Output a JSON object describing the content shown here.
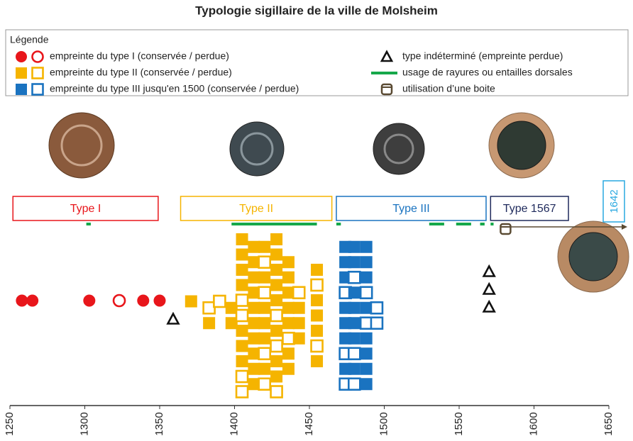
{
  "chart_data": {
    "type": "timeline",
    "title": "Typologie sigillaire de la ville de Molsheim",
    "legend_title": "Légende",
    "xlim": [
      1250,
      1650
    ],
    "xticks": [
      1250,
      1300,
      1350,
      1400,
      1450,
      1500,
      1550,
      1600,
      1650
    ],
    "series": [
      {
        "name": "empreinte du type I (conservée / perdue)",
        "color": "#e8161b",
        "marker": "circle",
        "columns": [
          {
            "x": 1258,
            "conserved": [
              true
            ]
          },
          {
            "x": 1265,
            "conserved": [
              true
            ]
          },
          {
            "x": 1303,
            "conserved": [
              true
            ]
          },
          {
            "x": 1323,
            "conserved": [
              false
            ]
          },
          {
            "x": 1339,
            "conserved": [
              true
            ]
          },
          {
            "x": 1350,
            "conserved": [
              true
            ]
          }
        ]
      },
      {
        "name": "empreinte du type II (conservée / perdue)",
        "color": "#f5b400",
        "marker": "square",
        "columns": [
          {
            "x": 1371,
            "conserved": [
              true
            ]
          },
          {
            "x": 1383,
            "conserved": [
              false,
              true
            ]
          },
          {
            "x": 1390,
            "conserved": [
              false
            ]
          },
          {
            "x": 1398,
            "conserved": [
              true,
              true
            ]
          },
          {
            "x": 1405,
            "conserved": [
              true,
              true,
              true,
              true,
              false,
              false,
              true,
              true,
              true,
              false,
              false
            ]
          },
          {
            "x": 1413,
            "conserved": [
              true,
              true,
              true,
              true,
              true,
              true,
              true,
              true,
              true,
              true
            ]
          },
          {
            "x": 1420,
            "conserved": [
              true,
              false,
              true,
              false,
              true,
              true,
              true,
              false,
              true,
              false
            ]
          },
          {
            "x": 1428,
            "conserved": [
              true,
              true,
              true,
              true,
              true,
              false,
              true,
              false,
              true,
              true,
              false
            ]
          },
          {
            "x": 1436,
            "conserved": [
              true,
              true,
              true,
              true,
              true,
              false,
              true,
              true
            ]
          },
          {
            "x": 1443,
            "conserved": [
              false,
              true,
              true,
              true
            ]
          },
          {
            "x": 1455,
            "conserved": [
              true,
              false,
              true,
              true,
              true,
              false,
              true
            ]
          }
        ]
      },
      {
        "name": "empreinte du type III jusqu'en 1500 (conservée / perdue)",
        "color": "#1a73c0",
        "marker": "square",
        "columns": [
          {
            "x": 1474,
            "conserved": [
              true,
              true,
              true,
              false,
              true,
              true,
              true,
              false,
              true,
              false
            ]
          },
          {
            "x": 1480,
            "conserved": [
              true,
              true,
              false,
              true,
              true,
              true,
              true,
              false,
              true,
              false
            ]
          },
          {
            "x": 1488,
            "conserved": [
              true,
              true,
              true,
              false,
              true,
              false,
              true,
              true,
              true,
              true
            ]
          },
          {
            "x": 1495,
            "conserved": [
              false,
              false
            ]
          }
        ]
      },
      {
        "name": "type indéterminé (empreinte perdue)",
        "color": "#111111",
        "marker": "triangle",
        "columns": [
          {
            "x": 1359,
            "conserved": [
              false
            ]
          },
          {
            "x": 1570,
            "conserved": [
              false,
              false,
              false
            ]
          }
        ]
      }
    ],
    "rayures": {
      "name": "usage de rayures ou entailles dorsales",
      "color": "#16a84a",
      "ranges": [
        [
          1301,
          1304
        ],
        [
          1398,
          1455
        ],
        [
          1468,
          1471
        ],
        [
          1530,
          1540
        ],
        [
          1548,
          1558
        ],
        [
          1564,
          1567
        ],
        [
          1571,
          1573
        ]
      ]
    },
    "boite": {
      "name": "utilisation d’une boite",
      "x": 1581,
      "color": "#5a4a32"
    },
    "periods": [
      {
        "label": "Type I",
        "range": [
          1252,
          1349
        ],
        "color": "#e8161b"
      },
      {
        "label": "Type II",
        "range": [
          1364,
          1465
        ],
        "color": "#f5b400"
      },
      {
        "label": "Type III",
        "range": [
          1468,
          1568
        ],
        "color": "#1a73c0"
      },
      {
        "label": "Type 1567",
        "range": [
          1571,
          1623
        ],
        "color": "#1f2a5c"
      }
    ],
    "end_label": "1642",
    "end_label_color": "#29a8e0"
  }
}
